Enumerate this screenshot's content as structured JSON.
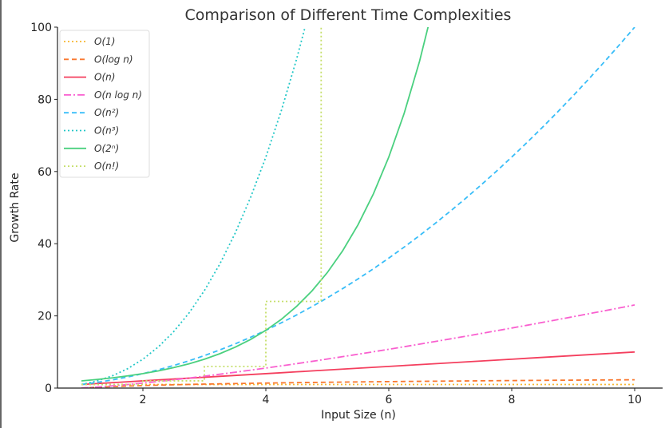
{
  "chart_data": {
    "type": "line",
    "title": "Comparison of Different Time Complexities",
    "xlabel": "Input Size (n)",
    "ylabel": "Growth Rate",
    "xlim": [
      0.6,
      10.45
    ],
    "ylim": [
      0,
      100
    ],
    "xticks": [
      2,
      4,
      6,
      8,
      10
    ],
    "yticks": [
      0,
      20,
      40,
      60,
      80,
      100
    ],
    "xtick_labels": [
      "2",
      "4",
      "6",
      "8",
      "10"
    ],
    "ytick_labels": [
      "0",
      "20",
      "40",
      "60",
      "80",
      "100"
    ],
    "grid": false,
    "legend_position": "top-left",
    "x": [
      1,
      1.25,
      1.5,
      1.75,
      2,
      2.25,
      2.5,
      2.75,
      3,
      3.25,
      3.5,
      3.75,
      4,
      4.25,
      4.5,
      4.75,
      5,
      5.25,
      5.5,
      5.75,
      6,
      6.25,
      6.5,
      6.75,
      7,
      7.25,
      7.5,
      7.75,
      8,
      8.25,
      8.5,
      8.75,
      9,
      9.25,
      9.5,
      9.75,
      10
    ],
    "series": [
      {
        "name": "O(1)",
        "color": "#f7b731",
        "style": "dotted",
        "values": [
          1,
          1,
          1,
          1,
          1,
          1,
          1,
          1,
          1,
          1,
          1,
          1,
          1,
          1,
          1,
          1,
          1,
          1,
          1,
          1,
          1,
          1,
          1,
          1,
          1,
          1,
          1,
          1,
          1,
          1,
          1,
          1,
          1,
          1,
          1,
          1,
          1
        ]
      },
      {
        "name": "O(log n)",
        "color": "#f9782f",
        "style": "dashed",
        "values": [
          0,
          0.223,
          0.405,
          0.56,
          0.693,
          0.811,
          0.916,
          1.012,
          1.099,
          1.179,
          1.253,
          1.322,
          1.386,
          1.447,
          1.504,
          1.558,
          1.609,
          1.658,
          1.705,
          1.749,
          1.792,
          1.833,
          1.872,
          1.91,
          1.946,
          1.981,
          2.015,
          2.048,
          2.079,
          2.11,
          2.14,
          2.169,
          2.197,
          2.225,
          2.251,
          2.277,
          2.303
        ]
      },
      {
        "name": "O(n)",
        "color": "#f43f5e",
        "style": "solid",
        "values": [
          1,
          1.25,
          1.5,
          1.75,
          2,
          2.25,
          2.5,
          2.75,
          3,
          3.25,
          3.5,
          3.75,
          4,
          4.25,
          4.5,
          4.75,
          5,
          5.25,
          5.5,
          5.75,
          6,
          6.25,
          6.5,
          6.75,
          7,
          7.25,
          7.5,
          7.75,
          8,
          8.25,
          8.5,
          8.75,
          9,
          9.25,
          9.5,
          9.75,
          10
        ]
      },
      {
        "name": "O(n log n)",
        "color": "#f95fcf",
        "style": "dashdot",
        "values": [
          0,
          0.279,
          0.608,
          0.979,
          1.386,
          1.825,
          2.291,
          2.782,
          3.296,
          3.831,
          4.385,
          4.957,
          5.545,
          6.15,
          6.768,
          7.401,
          8.047,
          8.705,
          9.376,
          10.059,
          10.751,
          11.453,
          12.167,
          12.889,
          13.621,
          14.361,
          15.112,
          15.872,
          16.636,
          17.408,
          18.19,
          18.979,
          19.775,
          20.581,
          21.387,
          22.201,
          23.026
        ]
      },
      {
        "name": "O(n²)",
        "color": "#38bdf8",
        "style": "dashed",
        "values": [
          1,
          1.5625,
          2.25,
          3.0625,
          4,
          5.0625,
          6.25,
          7.5625,
          9,
          10.5625,
          12.25,
          14.0625,
          16,
          18.0625,
          20.25,
          22.5625,
          25,
          27.5625,
          30.25,
          33.0625,
          36,
          39.0625,
          42.25,
          45.5625,
          49,
          52.5625,
          56.25,
          60.0625,
          64,
          68.0625,
          72.25,
          76.5625,
          81,
          85.5625,
          90.25,
          95.0625,
          100
        ]
      },
      {
        "name": "O(n³)",
        "color": "#22c7c7",
        "style": "dotted",
        "values": [
          1,
          1.953,
          3.375,
          5.359,
          8,
          11.391,
          15.625,
          20.797,
          27,
          34.328,
          42.875,
          52.734,
          64,
          76.766,
          91.125,
          107.17,
          125,
          null,
          null,
          null,
          null,
          null,
          null,
          null,
          null,
          null,
          null,
          null,
          null,
          null,
          null,
          null,
          null,
          null,
          null,
          null,
          null
        ]
      },
      {
        "name": "O(2ⁿ)",
        "color": "#4ad07f",
        "style": "solid",
        "values": [
          2,
          2.378,
          2.828,
          3.364,
          4,
          4.757,
          5.657,
          6.727,
          8,
          9.514,
          11.314,
          13.454,
          16,
          19.027,
          22.627,
          26.909,
          32,
          38.055,
          45.255,
          53.817,
          64,
          76.109,
          90.51,
          107.63,
          128,
          null,
          null,
          null,
          null,
          null,
          null,
          null,
          null,
          null,
          null,
          null,
          null
        ]
      },
      {
        "name": "O(n!)",
        "color": "#c6df6a",
        "style": "dotted",
        "x": [
          1,
          2,
          2,
          3,
          3,
          4,
          4,
          4.9,
          4.9
        ],
        "values": [
          1,
          1,
          2,
          2,
          6,
          6,
          24,
          24,
          120
        ]
      }
    ]
  }
}
